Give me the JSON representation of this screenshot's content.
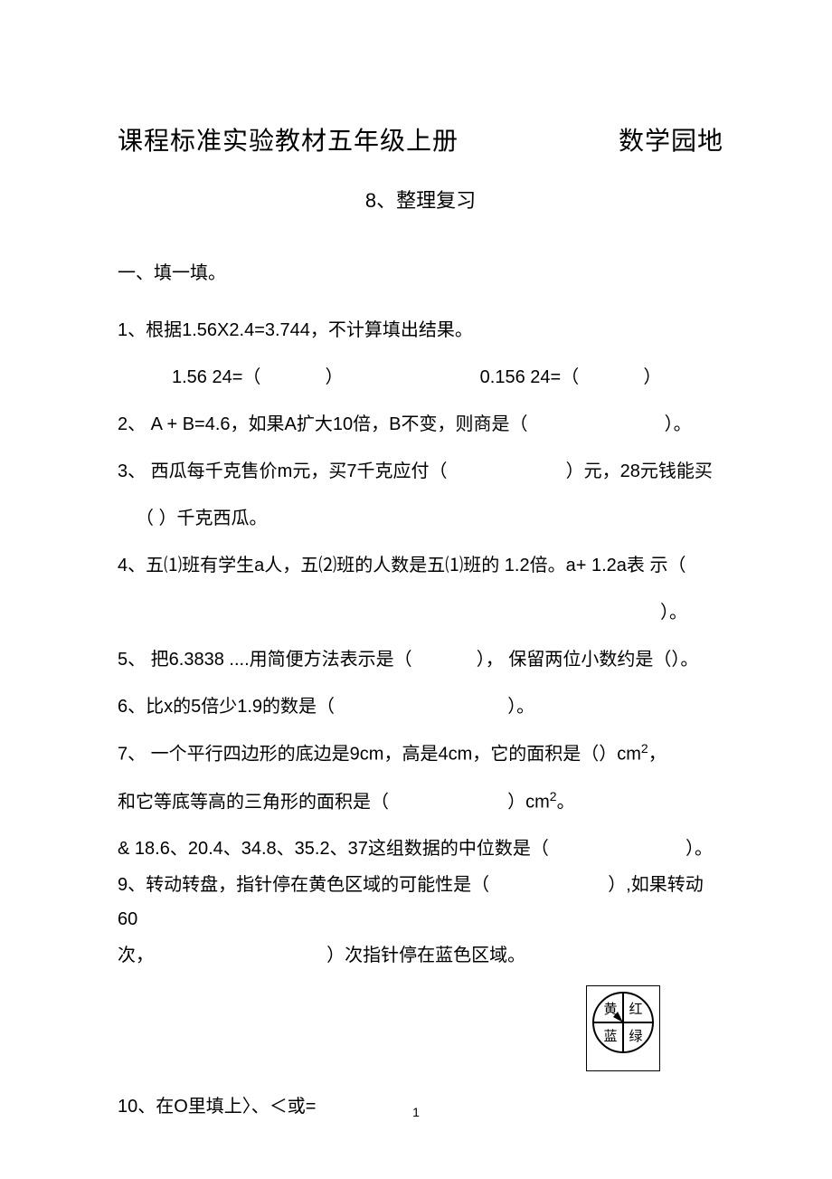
{
  "title_left": "课程标准实验教材五年级上册",
  "title_right": "数学园地",
  "subtitle": "8、整理复习",
  "section1_head": "一、填一填。",
  "q1": "1、根据1.56X2.4=3.744，不计算填出结果。",
  "q1_a": "1.56 24=（",
  "q1_a_close": "）",
  "q1_b": "0.156 24=（",
  "q1_b_close": "）",
  "q2": "2、 A + B=4.6，如果A扩大10倍，B不变，则商是（",
  "q2_close": "）。",
  "q3": "3、 西瓜每千克售价m元，买7千克应付（",
  "q3_mid": "）元，28元钱能买",
  "q3_line2": "（        ）千克西瓜。",
  "q4": "4、五⑴班有学生a人，五⑵班的人数是五⑴班的 1.2倍。a+ 1.2a表 示（",
  "q4_close": "）。",
  "q5": "5、 把6.3838 ....用简便方法表示是（",
  "q5_mid": "）， 保留两位小数约是（）。",
  "q6": "6、比x的5倍少1.9的数是（",
  "q6_close": "）。",
  "q7": "7、 一个平行四边形的底边是9cm，高是4cm，它的面积是（）cm",
  "q7_sup": "2",
  "q7_comma": "，",
  "q7_line2_a": "和它等底等高的三角形的面积是（",
  "q7_line2_b": "）cm",
  "q7_line2_sup": "2",
  "q7_line2_close": "。",
  "q8": "& 18.6、20.4、34.8、35.2、37这组数据的中位数是（",
  "q8_close": "）。",
  "q9a": "9、转动转盘，指针停在黄色区域的可能性是（",
  "q9a_close": "）,如果转动60",
  "q9b_a": "次，",
  "q9b_b": "）次指针停在蓝色区域。",
  "q10": "10、在O里填上〉、＜或=",
  "spinner": {
    "quadrants": [
      "黄",
      "红",
      "蓝",
      "绿"
    ],
    "stroke": "#000000",
    "bg": "#ffffff",
    "text_color": "#000000",
    "size": 72
  },
  "page_number": "1"
}
